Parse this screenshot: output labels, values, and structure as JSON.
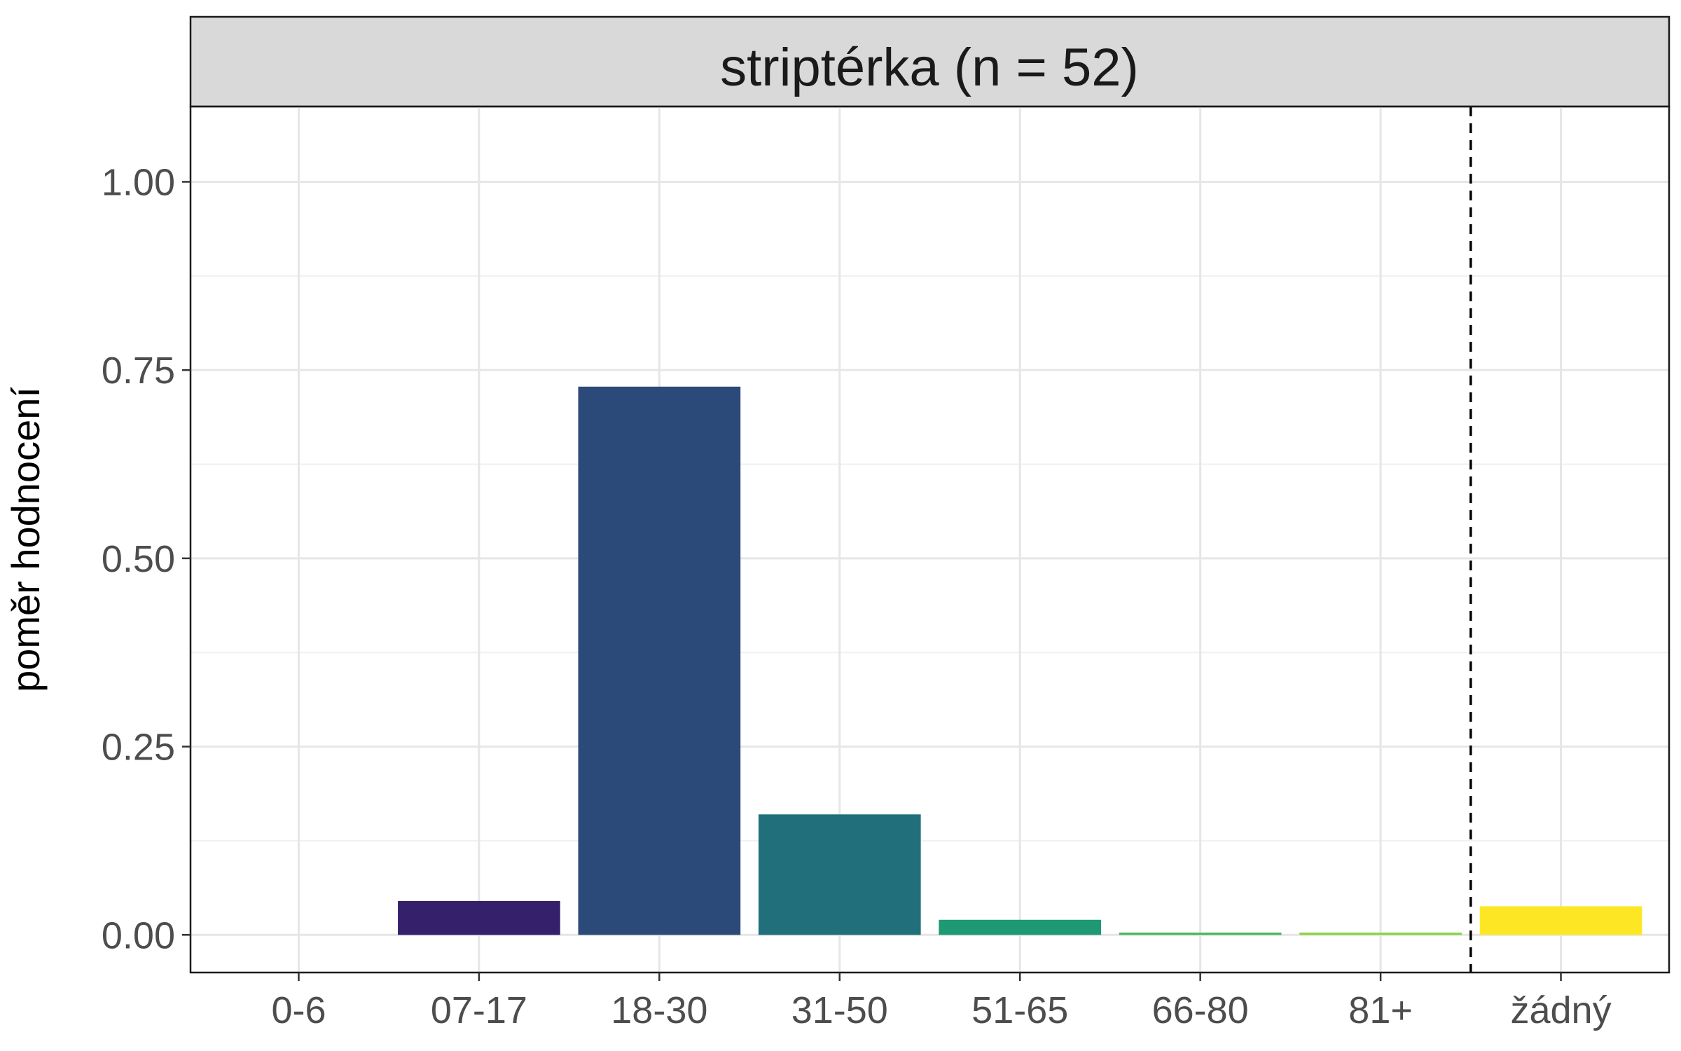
{
  "chart_data": {
    "type": "bar",
    "facet_title": "striptérka (n = 52)",
    "ylabel": "poměr hodnocení",
    "xlabel": "",
    "categories": [
      "0-6",
      "07-17",
      "18-30",
      "31-50",
      "51-65",
      "66-80",
      "81+",
      "žádný"
    ],
    "values": [
      0.0,
      0.045,
      0.728,
      0.16,
      0.02,
      0.003,
      0.003,
      0.038
    ],
    "colors": [
      "#440154",
      "#35206b",
      "#2c4a79",
      "#216f7b",
      "#1f9874",
      "#46b85a",
      "#86d43f",
      "#fde725"
    ],
    "ylim": [
      -0.05,
      1.1
    ],
    "yticks": [
      0.0,
      0.25,
      0.5,
      0.75,
      1.0
    ],
    "ytick_labels": [
      "0.00",
      "0.25",
      "0.50",
      "0.75",
      "1.00"
    ],
    "dashed_separator_after_category": "81+",
    "grid": true,
    "legend": "none"
  }
}
